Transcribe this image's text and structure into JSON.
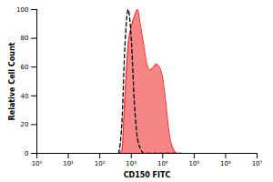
{
  "chart_data": {
    "type": "area",
    "x_label": "CD150 FITC",
    "y_label": "Relative Cell Count",
    "x": [
      398,
      501,
      631,
      794,
      1000,
      1259,
      1585,
      1995,
      2512,
      3162,
      3981,
      5012,
      6310,
      7943,
      10000,
      12589,
      15849,
      19953,
      25119,
      31623,
      39811
    ],
    "series": [
      {
        "type": "area",
        "color": "#ee2222",
        "line_style": "solid",
        "values": [
          0,
          2,
          40,
          75,
          88,
          95,
          100,
          88,
          75,
          62,
          58,
          60,
          62,
          60,
          52,
          35,
          15,
          5,
          1,
          0,
          0
        ]
      },
      {
        "type": "line",
        "color": "#000000",
        "line_style": "dashed",
        "values": [
          0,
          20,
          75,
          100,
          80,
          35,
          10,
          3,
          0,
          0,
          0,
          0,
          0,
          0,
          0,
          0,
          0,
          0,
          0,
          0,
          0
        ]
      }
    ],
    "log": "x",
    "xlim": [
      1,
      10000000
    ],
    "xticks": [
      {
        "value": 1,
        "label": "10⁰"
      },
      {
        "value": 10,
        "label": "10¹"
      },
      {
        "value": 100,
        "label": "10²"
      },
      {
        "value": 1000,
        "label": "10³"
      },
      {
        "value": 10000,
        "label": "10⁴"
      },
      {
        "value": 100000,
        "label": "10⁵"
      },
      {
        "value": 1000000,
        "label": "10⁶"
      },
      {
        "value": 10000000,
        "label": "10⁷"
      }
    ],
    "ylim": [
      0,
      100
    ],
    "yticks": [
      0,
      20,
      40,
      60,
      80,
      100
    ],
    "grid": false
  }
}
